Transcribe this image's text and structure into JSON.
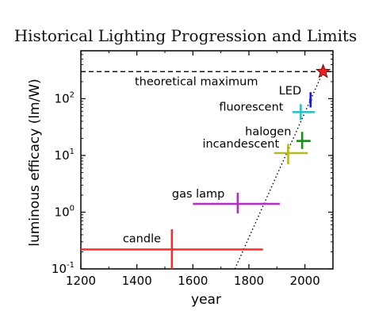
{
  "chart_data": {
    "type": "scatter",
    "title": "Historical Lighting Progression and Limits",
    "xlabel": "year",
    "ylabel": "luminous efficacy (lm/W)",
    "xlim": [
      1200,
      2100
    ],
    "ylim": [
      0.1,
      700
    ],
    "yscale": "log",
    "grid": false,
    "x_ticks": [
      1200,
      1400,
      1600,
      1800,
      2000
    ],
    "x_tick_labels": [
      "1200",
      "1400",
      "1600",
      "1800",
      "2000"
    ],
    "y_ticks": [
      0.1,
      1,
      10,
      100
    ],
    "y_tick_labels": [
      {
        "base": "10",
        "exp": "-1"
      },
      {
        "base": "10",
        "exp": "0"
      },
      {
        "base": "10",
        "exp": "1"
      },
      {
        "base": "10",
        "exp": "2"
      }
    ],
    "theoretical_maximum": {
      "label": "theoretical maximum",
      "y": 300
    },
    "trend_line": {
      "style": "dotted",
      "x1": 1750,
      "y1": 0.1,
      "x2": 2065,
      "y2": 300
    },
    "target_point": {
      "x": 2065,
      "y": 300,
      "color": "#e82020",
      "marker": "star"
    },
    "series": [
      {
        "name": "candle",
        "color": "#ff2a2a",
        "x": 1525,
        "x_range": [
          1200,
          1850
        ],
        "y": 0.22,
        "y_range": [
          0.1,
          0.5
        ]
      },
      {
        "name": "gas lamp",
        "color": "#b030c0",
        "x": 1760,
        "x_range": [
          1600,
          1910
        ],
        "y": 1.4,
        "y_range": [
          0.95,
          2.2
        ]
      },
      {
        "name": "incandescent",
        "color": "#b8b820",
        "x": 1940,
        "x_range": [
          1890,
          2010
        ],
        "y": 11,
        "y_range": [
          7,
          16
        ]
      },
      {
        "name": "halogen",
        "color": "#1a8a1a",
        "x": 1990,
        "x_range": [
          1970,
          2020
        ],
        "y": 18,
        "y_range": [
          13,
          26
        ]
      },
      {
        "name": "fluorescent",
        "color": "#30c0c0",
        "x": 1985,
        "x_range": [
          1955,
          2035
        ],
        "y": 58,
        "y_range": [
          42,
          80
        ]
      },
      {
        "name": "LED",
        "color": "#1a1ae0",
        "x": 2020,
        "x_range": [
          2015,
          2025
        ],
        "y": 95,
        "y_range": [
          70,
          130
        ]
      }
    ]
  }
}
